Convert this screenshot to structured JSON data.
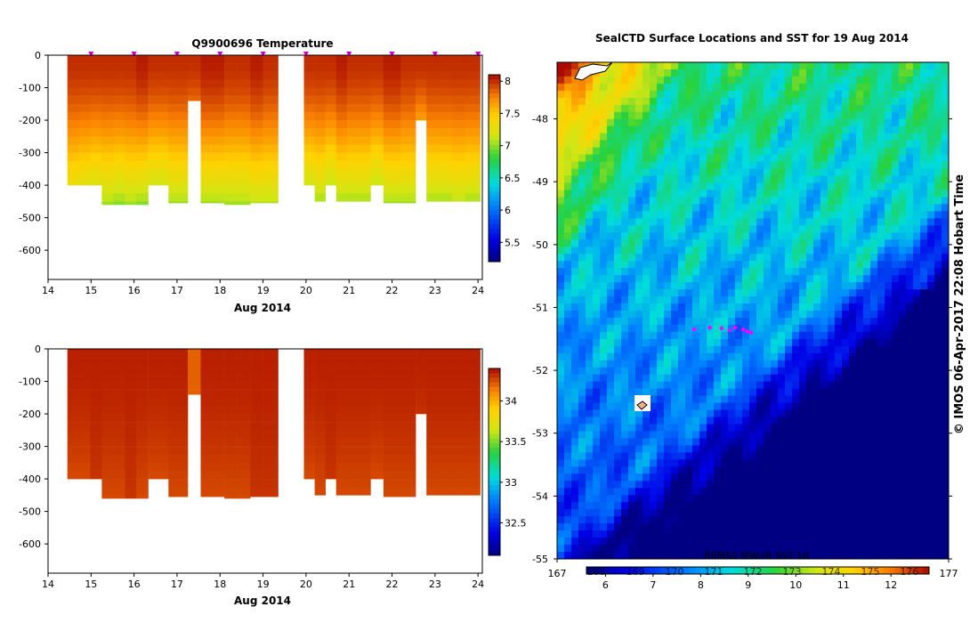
{
  "chart_data": [
    {
      "type": "heatmap",
      "title": "Q9900696  Temperature",
      "xlabel": "Aug 2014",
      "ylabel": "",
      "x_ticks": [
        "14",
        "15",
        "16",
        "17",
        "18",
        "19",
        "20",
        "21",
        "22",
        "23",
        "24"
      ],
      "y_ticks": [
        "0",
        "-100",
        "-200",
        "-300",
        "-400",
        "-500",
        "-600"
      ],
      "xlim": [
        14,
        24.1
      ],
      "ylim": [
        -690,
        0
      ],
      "colorbar_ticks": [
        "8",
        "7.5",
        "7",
        "6.5",
        "6",
        "5.5"
      ],
      "colorbar_range": [
        5.2,
        8.1
      ],
      "profile_markers": [
        15,
        16,
        17,
        18,
        19,
        20,
        21,
        22,
        23,
        24
      ],
      "profiles": [
        {
          "t0": 14.45,
          "t1": 14.72,
          "max_depth": 400,
          "surface": 8.0,
          "deep": 7.25
        },
        {
          "t0": 14.72,
          "t1": 14.98,
          "max_depth": 400,
          "surface": 8.0,
          "deep": 7.2
        },
        {
          "t0": 14.98,
          "t1": 15.25,
          "max_depth": 400,
          "surface": 8.0,
          "deep": 7.15
        },
        {
          "t0": 15.25,
          "t1": 15.52,
          "max_depth": 460,
          "surface": 8.0,
          "deep": 7.0
        },
        {
          "t0": 15.52,
          "t1": 15.79,
          "max_depth": 460,
          "surface": 8.0,
          "deep": 6.95
        },
        {
          "t0": 15.79,
          "t1": 16.05,
          "max_depth": 460,
          "surface": 8.0,
          "deep": 7.0
        },
        {
          "t0": 16.05,
          "t1": 16.33,
          "max_depth": 460,
          "surface": 8.05,
          "deep": 6.95
        },
        {
          "t0": 16.33,
          "t1": 16.8,
          "max_depth": 400,
          "surface": 8.0,
          "deep": 7.1
        },
        {
          "t0": 16.8,
          "t1": 17.25,
          "max_depth": 455,
          "surface": 8.0,
          "deep": 7.0
        },
        {
          "t0": 17.25,
          "t1": 17.55,
          "max_depth": 140,
          "surface": 8.0,
          "deep": 7.8
        },
        {
          "t0": 17.55,
          "t1": 17.85,
          "max_depth": 455,
          "surface": 8.05,
          "deep": 7.0
        },
        {
          "t0": 17.85,
          "t1": 18.1,
          "max_depth": 455,
          "surface": 8.05,
          "deep": 7.0
        },
        {
          "t0": 18.1,
          "t1": 18.4,
          "max_depth": 460,
          "surface": 8.0,
          "deep": 7.0
        },
        {
          "t0": 18.4,
          "t1": 18.7,
          "max_depth": 460,
          "surface": 8.0,
          "deep": 7.0
        },
        {
          "t0": 18.7,
          "t1": 19.0,
          "max_depth": 455,
          "surface": 8.05,
          "deep": 7.05
        },
        {
          "t0": 19.0,
          "t1": 19.35,
          "max_depth": 455,
          "surface": 8.0,
          "deep": 7.05
        },
        {
          "t0": 19.95,
          "t1": 20.2,
          "max_depth": 400,
          "surface": 8.0,
          "deep": 7.1
        },
        {
          "t0": 20.2,
          "t1": 20.45,
          "max_depth": 450,
          "surface": 8.0,
          "deep": 7.0
        },
        {
          "t0": 20.45,
          "t1": 20.7,
          "max_depth": 400,
          "surface": 8.0,
          "deep": 7.05
        },
        {
          "t0": 20.7,
          "t1": 20.95,
          "max_depth": 450,
          "surface": 8.05,
          "deep": 7.0
        },
        {
          "t0": 20.95,
          "t1": 21.2,
          "max_depth": 450,
          "surface": 8.0,
          "deep": 7.0
        },
        {
          "t0": 21.2,
          "t1": 21.5,
          "max_depth": 450,
          "surface": 8.0,
          "deep": 7.0
        },
        {
          "t0": 21.5,
          "t1": 21.8,
          "max_depth": 400,
          "surface": 8.0,
          "deep": 7.05
        },
        {
          "t0": 21.8,
          "t1": 22.2,
          "max_depth": 455,
          "surface": 8.05,
          "deep": 7.0
        },
        {
          "t0": 22.2,
          "t1": 22.55,
          "max_depth": 455,
          "surface": 8.0,
          "deep": 7.0
        },
        {
          "t0": 22.55,
          "t1": 22.8,
          "max_depth": 200,
          "surface": 8.0,
          "deep": 7.6
        },
        {
          "t0": 22.8,
          "t1": 23.1,
          "max_depth": 450,
          "surface": 8.0,
          "deep": 7.0
        },
        {
          "t0": 23.1,
          "t1": 23.4,
          "max_depth": 450,
          "surface": 8.0,
          "deep": 7.0
        },
        {
          "t0": 23.4,
          "t1": 23.7,
          "max_depth": 450,
          "surface": 8.0,
          "deep": 7.05
        },
        {
          "t0": 23.7,
          "t1": 24.05,
          "max_depth": 450,
          "surface": 8.0,
          "deep": 7.0
        }
      ]
    },
    {
      "type": "heatmap",
      "title": "",
      "xlabel": "Aug 2014",
      "ylabel": "",
      "x_ticks": [
        "14",
        "15",
        "16",
        "17",
        "18",
        "19",
        "20",
        "21",
        "22",
        "23",
        "24"
      ],
      "y_ticks": [
        "0",
        "-100",
        "-200",
        "-300",
        "-400",
        "-500",
        "-600"
      ],
      "xlim": [
        14,
        24.1
      ],
      "ylim": [
        -690,
        0
      ],
      "colorbar_ticks": [
        "34",
        "33.5",
        "33",
        "32.5"
      ],
      "colorbar_range": [
        32.1,
        34.4
      ],
      "profiles": [
        {
          "t0": 14.45,
          "t1": 14.72,
          "max_depth": 400,
          "surface": 34.35,
          "deep": 34.25
        },
        {
          "t0": 14.72,
          "t1": 14.98,
          "max_depth": 400,
          "surface": 34.35,
          "deep": 34.25
        },
        {
          "t0": 14.98,
          "t1": 15.25,
          "max_depth": 400,
          "surface": 34.35,
          "deep": 34.3
        },
        {
          "t0": 15.25,
          "t1": 15.52,
          "max_depth": 460,
          "surface": 34.35,
          "deep": 34.25
        },
        {
          "t0": 15.52,
          "t1": 15.79,
          "max_depth": 460,
          "surface": 34.35,
          "deep": 34.25
        },
        {
          "t0": 15.79,
          "t1": 16.05,
          "max_depth": 460,
          "surface": 34.35,
          "deep": 34.3
        },
        {
          "t0": 16.05,
          "t1": 16.33,
          "max_depth": 460,
          "surface": 34.35,
          "deep": 34.25
        },
        {
          "t0": 16.33,
          "t1": 16.8,
          "max_depth": 400,
          "surface": 34.35,
          "deep": 34.25
        },
        {
          "t0": 16.8,
          "t1": 17.25,
          "max_depth": 455,
          "surface": 34.35,
          "deep": 34.25
        },
        {
          "t0": 17.25,
          "t1": 17.55,
          "max_depth": 140,
          "surface": 34.2,
          "deep": 34.2
        },
        {
          "t0": 17.55,
          "t1": 17.85,
          "max_depth": 455,
          "surface": 34.35,
          "deep": 34.25
        },
        {
          "t0": 17.85,
          "t1": 18.1,
          "max_depth": 455,
          "surface": 34.35,
          "deep": 34.25
        },
        {
          "t0": 18.1,
          "t1": 18.4,
          "max_depth": 460,
          "surface": 34.35,
          "deep": 34.25
        },
        {
          "t0": 18.4,
          "t1": 18.7,
          "max_depth": 460,
          "surface": 34.35,
          "deep": 34.25
        },
        {
          "t0": 18.7,
          "t1": 19.0,
          "max_depth": 455,
          "surface": 34.35,
          "deep": 34.3
        },
        {
          "t0": 19.0,
          "t1": 19.35,
          "max_depth": 455,
          "surface": 34.35,
          "deep": 34.3
        },
        {
          "t0": 19.95,
          "t1": 20.2,
          "max_depth": 400,
          "surface": 34.35,
          "deep": 34.25
        },
        {
          "t0": 20.2,
          "t1": 20.45,
          "max_depth": 450,
          "surface": 34.35,
          "deep": 34.25
        },
        {
          "t0": 20.45,
          "t1": 20.7,
          "max_depth": 400,
          "surface": 34.35,
          "deep": 34.3
        },
        {
          "t0": 20.7,
          "t1": 20.95,
          "max_depth": 450,
          "surface": 34.35,
          "deep": 34.25
        },
        {
          "t0": 20.95,
          "t1": 21.2,
          "max_depth": 450,
          "surface": 34.35,
          "deep": 34.25
        },
        {
          "t0": 21.2,
          "t1": 21.5,
          "max_depth": 450,
          "surface": 34.35,
          "deep": 34.25
        },
        {
          "t0": 21.5,
          "t1": 21.8,
          "max_depth": 400,
          "surface": 34.35,
          "deep": 34.25
        },
        {
          "t0": 21.8,
          "t1": 22.2,
          "max_depth": 455,
          "surface": 34.35,
          "deep": 34.25
        },
        {
          "t0": 22.2,
          "t1": 22.55,
          "max_depth": 455,
          "surface": 34.35,
          "deep": 34.25
        },
        {
          "t0": 22.55,
          "t1": 22.8,
          "max_depth": 200,
          "surface": 34.35,
          "deep": 34.3
        },
        {
          "t0": 22.8,
          "t1": 23.1,
          "max_depth": 450,
          "surface": 34.35,
          "deep": 34.25
        },
        {
          "t0": 23.1,
          "t1": 23.4,
          "max_depth": 450,
          "surface": 34.35,
          "deep": 34.25
        },
        {
          "t0": 23.4,
          "t1": 23.7,
          "max_depth": 450,
          "surface": 34.35,
          "deep": 34.25
        },
        {
          "t0": 23.7,
          "t1": 24.05,
          "max_depth": 450,
          "surface": 34.35,
          "deep": 34.25
        }
      ]
    },
    {
      "type": "heatmap",
      "title": "SealCTD Surface Locations and SST for 19 Aug 2014",
      "xlabel": "",
      "ylabel": "",
      "xlim": [
        167,
        177
      ],
      "ylim": [
        -55,
        -47.1
      ],
      "x_ticks": [
        "167",
        "177"
      ],
      "y_ticks": [
        "-48",
        "-49",
        "-50",
        "-51",
        "-52",
        "-53",
        "-54",
        "-55"
      ],
      "colorbar_top_ticks": [
        "168",
        "169",
        "170",
        "171",
        "172",
        "173",
        "174",
        "175",
        "176"
      ],
      "colorbar_ticks": [
        "6",
        "7",
        "8",
        "9",
        "10",
        "11",
        "12"
      ],
      "colorbar_range": [
        5.6,
        12.8
      ],
      "source_label": "REMSS MW-IR SST 1d",
      "side_label": "© IMOS 06-Apr-2017 22:08 Hobart Time",
      "seal_track": [
        {
          "lon": 170.5,
          "lat": -51.35
        },
        {
          "lon": 170.9,
          "lat": -51.32
        },
        {
          "lon": 171.2,
          "lat": -51.33
        },
        {
          "lon": 171.4,
          "lat": -51.36
        },
        {
          "lon": 171.55,
          "lat": -51.32
        },
        {
          "lon": 171.75,
          "lat": -51.35
        },
        {
          "lon": 171.85,
          "lat": -51.38
        },
        {
          "lon": 171.95,
          "lat": -51.4
        }
      ]
    }
  ]
}
